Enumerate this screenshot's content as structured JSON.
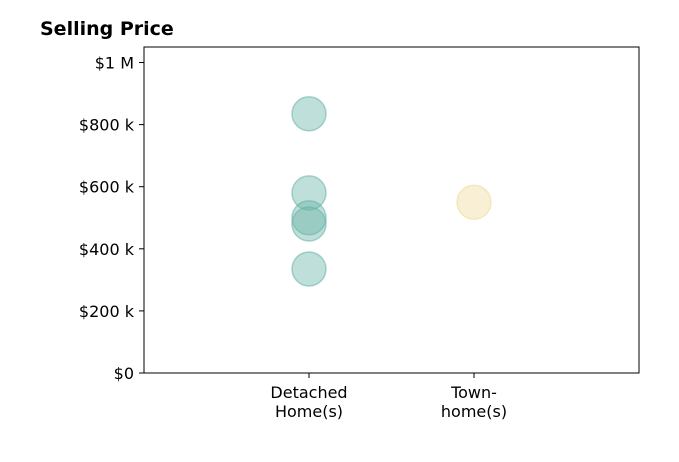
{
  "chart_data": {
    "type": "scatter",
    "title": "Selling Price",
    "xlabel": "",
    "ylabel": "",
    "categories": [
      [
        "Detached",
        "Home(s)"
      ],
      [
        "Town-",
        "home(s)"
      ]
    ],
    "yticks": [
      {
        "value": 0,
        "label": "$0"
      },
      {
        "value": 200000,
        "label": "$200 k"
      },
      {
        "value": 400000,
        "label": "$400 k"
      },
      {
        "value": 600000,
        "label": "$600 k"
      },
      {
        "value": 800000,
        "label": "$800 k"
      },
      {
        "value": 1000000,
        "label": "$1 M"
      }
    ],
    "ylim": [
      0,
      1050000
    ],
    "grid": false,
    "series": [
      {
        "category_index": 0,
        "color": "#66b2a6",
        "values": [
          835000,
          580000,
          500000,
          480000,
          335000
        ]
      },
      {
        "category_index": 1,
        "color": "#f0d89c",
        "values": [
          550000
        ]
      }
    ]
  }
}
